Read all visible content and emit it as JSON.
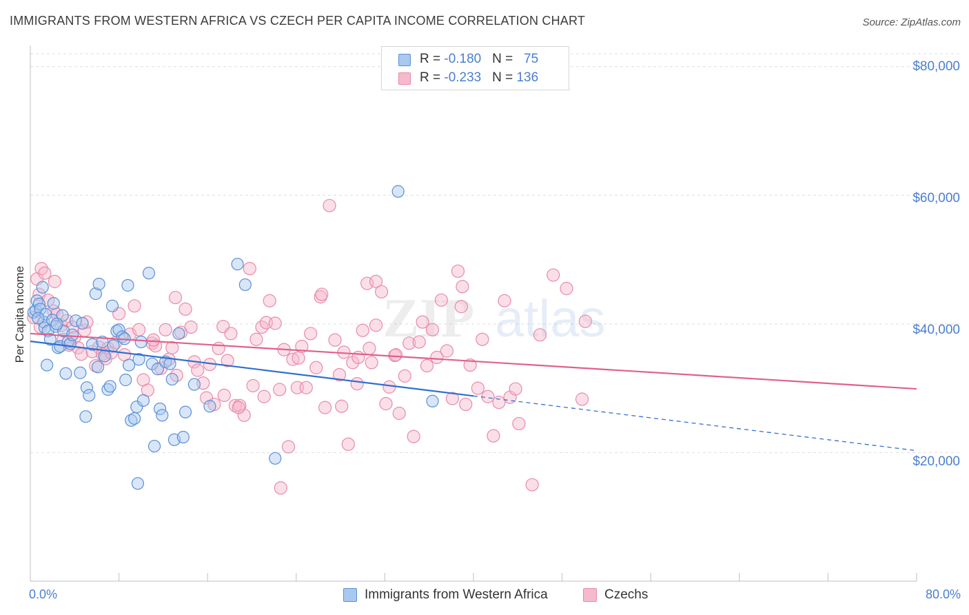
{
  "header": {
    "title": "IMMIGRANTS FROM WESTERN AFRICA VS CZECH PER CAPITA INCOME CORRELATION CHART",
    "source": "Source: ZipAtlas.com"
  },
  "watermark": {
    "zip": "ZIP",
    "atlas": "atlas"
  },
  "legend": {
    "rows": [
      {
        "r_label": "R = ",
        "r_value": "-0.180",
        "n_label": "N = ",
        "n_value": "75"
      },
      {
        "r_label": "R = ",
        "r_value": "-0.233",
        "n_label": "N = ",
        "n_value": "136"
      }
    ]
  },
  "bottom_legend": {
    "series1": "Immigrants from Western Africa",
    "series2": "Czechs"
  },
  "colors": {
    "blue_fill": "#a8c8f0",
    "blue_stroke": "#5b8fd6",
    "blue_line": "#2f6fd0",
    "pink_fill": "#f7b9cc",
    "pink_stroke": "#e88aa8",
    "pink_line": "#e0608a",
    "tick_text": "#4a7ed0",
    "grid": "#dedede"
  },
  "chart_data": {
    "type": "scatter",
    "title": "IMMIGRANTS FROM WESTERN AFRICA VS CZECH PER CAPITA INCOME CORRELATION CHART",
    "xlabel": "",
    "ylabel": "Per Capita Income",
    "xlim": [
      0,
      80
    ],
    "ylim": [
      0,
      82000
    ],
    "x_tick_labels": [
      "0.0%",
      "80.0%"
    ],
    "y_ticks": [
      20000,
      40000,
      60000,
      80000
    ],
    "y_tick_labels": [
      "$20,000",
      "$40,000",
      "$60,000",
      "$80,000"
    ],
    "grid": true,
    "legend_position": "top-center",
    "series": [
      {
        "name": "Immigrants from Western Africa",
        "R": -0.18,
        "N": 75,
        "trend": {
          "x_solid": [
            0,
            40
          ],
          "y_solid": [
            37300,
            28800
          ],
          "x_dashed": [
            40,
            80
          ],
          "y_dashed": [
            28800,
            20300
          ]
        },
        "points": [
          [
            0.3,
            41.8
          ],
          [
            0.5,
            42.1
          ],
          [
            0.6,
            43.6
          ],
          [
            0.8,
            43.1
          ],
          [
            0.9,
            42.3
          ],
          [
            1.1,
            45.7
          ],
          [
            1.2,
            40.3
          ],
          [
            1.3,
            39.4
          ],
          [
            1.4,
            41.5
          ],
          [
            1.5,
            33.6
          ],
          [
            1.6,
            38.9
          ],
          [
            1.8,
            37.6
          ],
          [
            2.0,
            40.6
          ],
          [
            2.1,
            43.2
          ],
          [
            2.3,
            39.6
          ],
          [
            2.5,
            36.3
          ],
          [
            2.7,
            36.5
          ],
          [
            2.9,
            41.3
          ],
          [
            3.0,
            38.9
          ],
          [
            3.2,
            32.3
          ],
          [
            3.4,
            37.2
          ],
          [
            3.6,
            36.9
          ],
          [
            3.8,
            38.3
          ],
          [
            4.1,
            40.5
          ],
          [
            4.5,
            32.4
          ],
          [
            4.7,
            40.1
          ],
          [
            5.1,
            30.1
          ],
          [
            5.3,
            28.9
          ],
          [
            5.6,
            36.8
          ],
          [
            5.9,
            44.7
          ],
          [
            6.1,
            33.3
          ],
          [
            6.2,
            46.2
          ],
          [
            6.5,
            37.2
          ],
          [
            6.7,
            35.0
          ],
          [
            7.0,
            29.8
          ],
          [
            7.2,
            30.3
          ],
          [
            7.4,
            42.8
          ],
          [
            7.5,
            36.6
          ],
          [
            7.8,
            38.9
          ],
          [
            8.0,
            39.1
          ],
          [
            8.3,
            38.0
          ],
          [
            8.5,
            37.7
          ],
          [
            8.6,
            31.3
          ],
          [
            8.8,
            46.0
          ],
          [
            8.9,
            33.6
          ],
          [
            9.1,
            25.0
          ],
          [
            9.4,
            25.3
          ],
          [
            9.6,
            27.1
          ],
          [
            9.8,
            34.5
          ],
          [
            10.0,
            37.2
          ],
          [
            10.2,
            28.1
          ],
          [
            10.7,
            47.9
          ],
          [
            11.0,
            33.8
          ],
          [
            11.2,
            21.0
          ],
          [
            11.5,
            33.0
          ],
          [
            11.7,
            26.8
          ],
          [
            11.9,
            25.8
          ],
          [
            12.2,
            34.1
          ],
          [
            12.6,
            33.8
          ],
          [
            12.8,
            31.4
          ],
          [
            13.0,
            22.0
          ],
          [
            13.8,
            22.4
          ],
          [
            14.0,
            26.3
          ],
          [
            14.8,
            30.6
          ],
          [
            16.2,
            27.2
          ],
          [
            18.7,
            49.3
          ],
          [
            19.4,
            46.1
          ],
          [
            22.1,
            19.1
          ],
          [
            33.2,
            60.6
          ],
          [
            36.3,
            28.0
          ],
          [
            0.7,
            40.9
          ],
          [
            2.4,
            40.0
          ],
          [
            9.7,
            15.2
          ],
          [
            5.0,
            25.6
          ],
          [
            13.4,
            38.5
          ]
        ]
      },
      {
        "name": "Czechs",
        "R": -0.233,
        "N": 136,
        "trend": {
          "x_solid": [
            0,
            80
          ],
          "y_solid": [
            38500,
            29900
          ]
        },
        "points": [
          [
            0.3,
            41.0
          ],
          [
            0.6,
            47.0
          ],
          [
            0.8,
            44.6
          ],
          [
            1.0,
            48.6
          ],
          [
            1.3,
            47.9
          ],
          [
            1.6,
            43.7
          ],
          [
            2.1,
            42.0
          ],
          [
            2.2,
            46.6
          ],
          [
            2.4,
            41.5
          ],
          [
            2.8,
            39.8
          ],
          [
            3.0,
            37.6
          ],
          [
            3.3,
            40.5
          ],
          [
            3.5,
            36.7
          ],
          [
            3.8,
            39.5
          ],
          [
            4.0,
            37.9
          ],
          [
            4.3,
            36.3
          ],
          [
            4.6,
            35.3
          ],
          [
            4.9,
            39.0
          ],
          [
            5.1,
            40.3
          ],
          [
            5.6,
            35.7
          ],
          [
            5.9,
            33.5
          ],
          [
            6.2,
            36.4
          ],
          [
            6.5,
            35.3
          ],
          [
            6.8,
            34.6
          ],
          [
            7.0,
            36.2
          ],
          [
            7.3,
            35.5
          ],
          [
            7.7,
            37.1
          ],
          [
            8.0,
            41.6
          ],
          [
            8.5,
            35.2
          ],
          [
            9.0,
            38.4
          ],
          [
            9.4,
            42.8
          ],
          [
            9.8,
            39.1
          ],
          [
            10.2,
            31.3
          ],
          [
            10.6,
            29.7
          ],
          [
            11.0,
            37.0
          ],
          [
            11.3,
            36.6
          ],
          [
            11.8,
            33.1
          ],
          [
            12.2,
            39.1
          ],
          [
            12.5,
            34.5
          ],
          [
            12.8,
            36.3
          ],
          [
            13.1,
            44.1
          ],
          [
            13.6,
            38.7
          ],
          [
            14.0,
            42.3
          ],
          [
            14.5,
            39.5
          ],
          [
            14.8,
            34.1
          ],
          [
            15.1,
            32.8
          ],
          [
            15.6,
            30.8
          ],
          [
            15.9,
            28.5
          ],
          [
            16.2,
            33.7
          ],
          [
            16.6,
            27.5
          ],
          [
            17.0,
            36.2
          ],
          [
            17.4,
            39.6
          ],
          [
            17.8,
            34.3
          ],
          [
            18.1,
            38.5
          ],
          [
            18.5,
            27.3
          ],
          [
            18.9,
            27.3
          ],
          [
            19.3,
            25.8
          ],
          [
            19.8,
            48.6
          ],
          [
            20.1,
            30.4
          ],
          [
            20.4,
            37.6
          ],
          [
            20.9,
            39.5
          ],
          [
            21.3,
            40.2
          ],
          [
            21.6,
            43.6
          ],
          [
            22.1,
            40.1
          ],
          [
            22.5,
            29.8
          ],
          [
            22.9,
            36.0
          ],
          [
            23.3,
            20.9
          ],
          [
            23.7,
            34.5
          ],
          [
            24.1,
            30.1
          ],
          [
            24.5,
            36.5
          ],
          [
            24.9,
            30.1
          ],
          [
            25.3,
            38.5
          ],
          [
            25.8,
            33.2
          ],
          [
            26.2,
            44.2
          ],
          [
            26.6,
            27.0
          ],
          [
            27.0,
            58.4
          ],
          [
            27.5,
            37.5
          ],
          [
            27.9,
            32.1
          ],
          [
            28.3,
            35.6
          ],
          [
            28.7,
            21.3
          ],
          [
            29.1,
            34.0
          ],
          [
            29.6,
            34.8
          ],
          [
            30.0,
            39.0
          ],
          [
            30.4,
            46.3
          ],
          [
            30.8,
            34.0
          ],
          [
            31.2,
            46.6
          ],
          [
            31.7,
            45.0
          ],
          [
            32.1,
            27.6
          ],
          [
            32.4,
            30.2
          ],
          [
            32.9,
            35.1
          ],
          [
            33.3,
            26.1
          ],
          [
            33.8,
            31.9
          ],
          [
            34.2,
            37.0
          ],
          [
            34.6,
            22.5
          ],
          [
            35.1,
            37.2
          ],
          [
            35.4,
            40.3
          ],
          [
            35.8,
            33.5
          ],
          [
            36.3,
            39.1
          ],
          [
            36.7,
            34.8
          ],
          [
            37.1,
            43.7
          ],
          [
            37.6,
            35.8
          ],
          [
            38.1,
            28.4
          ],
          [
            38.6,
            48.2
          ],
          [
            39.0,
            45.8
          ],
          [
            39.3,
            27.5
          ],
          [
            39.7,
            33.6
          ],
          [
            40.4,
            30.0
          ],
          [
            40.8,
            37.6
          ],
          [
            41.3,
            28.7
          ],
          [
            41.8,
            22.6
          ],
          [
            42.3,
            27.8
          ],
          [
            42.8,
            43.6
          ],
          [
            43.3,
            28.6
          ],
          [
            43.8,
            29.9
          ],
          [
            44.1,
            24.5
          ],
          [
            45.3,
            15.0
          ],
          [
            46.0,
            38.3
          ],
          [
            47.2,
            47.6
          ],
          [
            48.4,
            45.5
          ],
          [
            49.8,
            28.3
          ],
          [
            50.1,
            40.4
          ],
          [
            38.9,
            42.7
          ],
          [
            28.1,
            27.2
          ],
          [
            29.5,
            30.7
          ],
          [
            31.2,
            39.8
          ],
          [
            33.0,
            35.2
          ],
          [
            30.6,
            36.2
          ],
          [
            22.6,
            14.5
          ],
          [
            21.1,
            28.7
          ],
          [
            18.8,
            27.0
          ],
          [
            17.5,
            28.9
          ],
          [
            26.3,
            44.6
          ],
          [
            24.2,
            34.7
          ],
          [
            13.2,
            32.0
          ],
          [
            11.1,
            37.5
          ],
          [
            0.9,
            39.5
          ]
        ]
      }
    ]
  }
}
